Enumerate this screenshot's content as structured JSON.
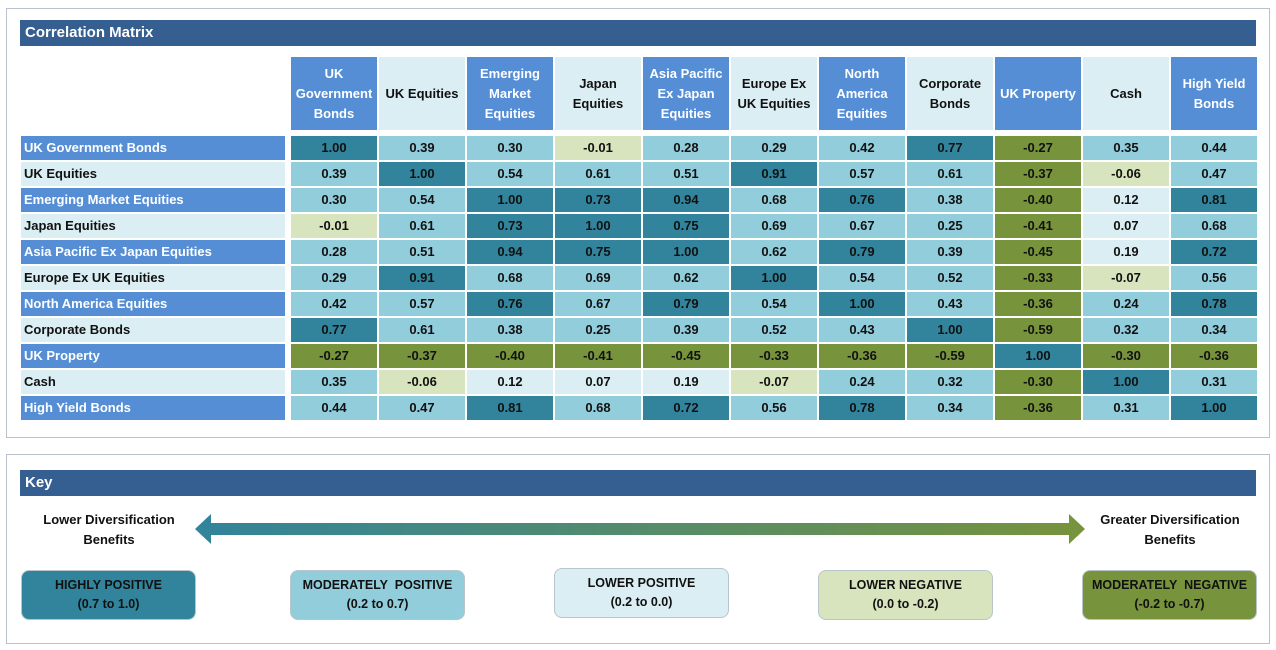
{
  "chart_data": {
    "type": "heatmap",
    "title": "Correlation Matrix",
    "columns": [
      "UK Government Bonds",
      "UK Equities",
      "Emerging Market Equities",
      "Japan Equities",
      "Asia Pacific Ex Japan Equities",
      "Europe Ex UK Equities",
      "North America Equities",
      "Corporate Bonds",
      "UK Property",
      "Cash",
      "High Yield Bonds"
    ],
    "rows": [
      "UK Government Bonds",
      "UK Equities",
      "Emerging Market Equities",
      "Japan Equities",
      "Asia Pacific Ex Japan Equities",
      "Europe Ex UK Equities",
      "North America Equities",
      "Corporate Bonds",
      "UK Property",
      "Cash",
      "High Yield Bonds"
    ],
    "values": [
      [
        "1.00",
        "0.39",
        "0.30",
        "-0.01",
        "0.28",
        "0.29",
        "0.42",
        "0.77",
        "-0.27",
        "0.35",
        "0.44"
      ],
      [
        "0.39",
        "1.00",
        "0.54",
        "0.61",
        "0.51",
        "0.91",
        "0.57",
        "0.61",
        "-0.37",
        "-0.06",
        "0.47"
      ],
      [
        "0.30",
        "0.54",
        "1.00",
        "0.73",
        "0.94",
        "0.68",
        "0.76",
        "0.38",
        "-0.40",
        "0.12",
        "0.81"
      ],
      [
        "-0.01",
        "0.61",
        "0.73",
        "1.00",
        "0.75",
        "0.69",
        "0.67",
        "0.25",
        "-0.41",
        "0.07",
        "0.68"
      ],
      [
        "0.28",
        "0.51",
        "0.94",
        "0.75",
        "1.00",
        "0.62",
        "0.79",
        "0.39",
        "-0.45",
        "0.19",
        "0.72"
      ],
      [
        "0.29",
        "0.91",
        "0.68",
        "0.69",
        "0.62",
        "1.00",
        "0.54",
        "0.52",
        "-0.33",
        "-0.07",
        "0.56"
      ],
      [
        "0.42",
        "0.57",
        "0.76",
        "0.67",
        "0.79",
        "0.54",
        "1.00",
        "0.43",
        "-0.36",
        "0.24",
        "0.78"
      ],
      [
        "0.77",
        "0.61",
        "0.38",
        "0.25",
        "0.39",
        "0.52",
        "0.43",
        "1.00",
        "-0.59",
        "0.32",
        "0.34"
      ],
      [
        "-0.27",
        "-0.37",
        "-0.40",
        "-0.41",
        "-0.45",
        "-0.33",
        "-0.36",
        "-0.59",
        "1.00",
        "-0.30",
        "-0.36"
      ],
      [
        "0.35",
        "-0.06",
        "0.12",
        "0.07",
        "0.19",
        "-0.07",
        "0.24",
        "0.32",
        "-0.30",
        "1.00",
        "0.31"
      ],
      [
        "0.44",
        "0.47",
        "0.81",
        "0.68",
        "0.72",
        "0.56",
        "0.78",
        "0.34",
        "-0.36",
        "0.31",
        "1.00"
      ]
    ]
  },
  "colors": {
    "section_bar": "#365f91",
    "header_blue": "#558ed5",
    "header_light": "#daeef3",
    "highly_positive": "#31849b",
    "moderately_positive": "#92cddc",
    "lower_positive": "#daeef3",
    "lower_negative": "#d7e4bd",
    "moderately_negative": "#77933c"
  },
  "key": {
    "title": "Key",
    "left_label": "Lower Diversification Benefits",
    "right_label": "Greater Diversification Benefits",
    "categories": [
      {
        "label": "HIGHLY POSITIVE",
        "range": "(0.7 to 1.0)",
        "color": "#31849b"
      },
      {
        "label": "MODERATELY  POSITIVE",
        "range": "(0.2 to 0.7)",
        "color": "#92cddc"
      },
      {
        "label": "LOWER POSITIVE",
        "range": "(0.2 to 0.0)",
        "color": "#daeef3"
      },
      {
        "label": "LOWER NEGATIVE",
        "range": "(0.0 to -0.2)",
        "color": "#d7e4bd"
      },
      {
        "label": "MODERATELY  NEGATIVE",
        "range": "(-0.2 to -0.7)",
        "color": "#77933c"
      }
    ]
  }
}
